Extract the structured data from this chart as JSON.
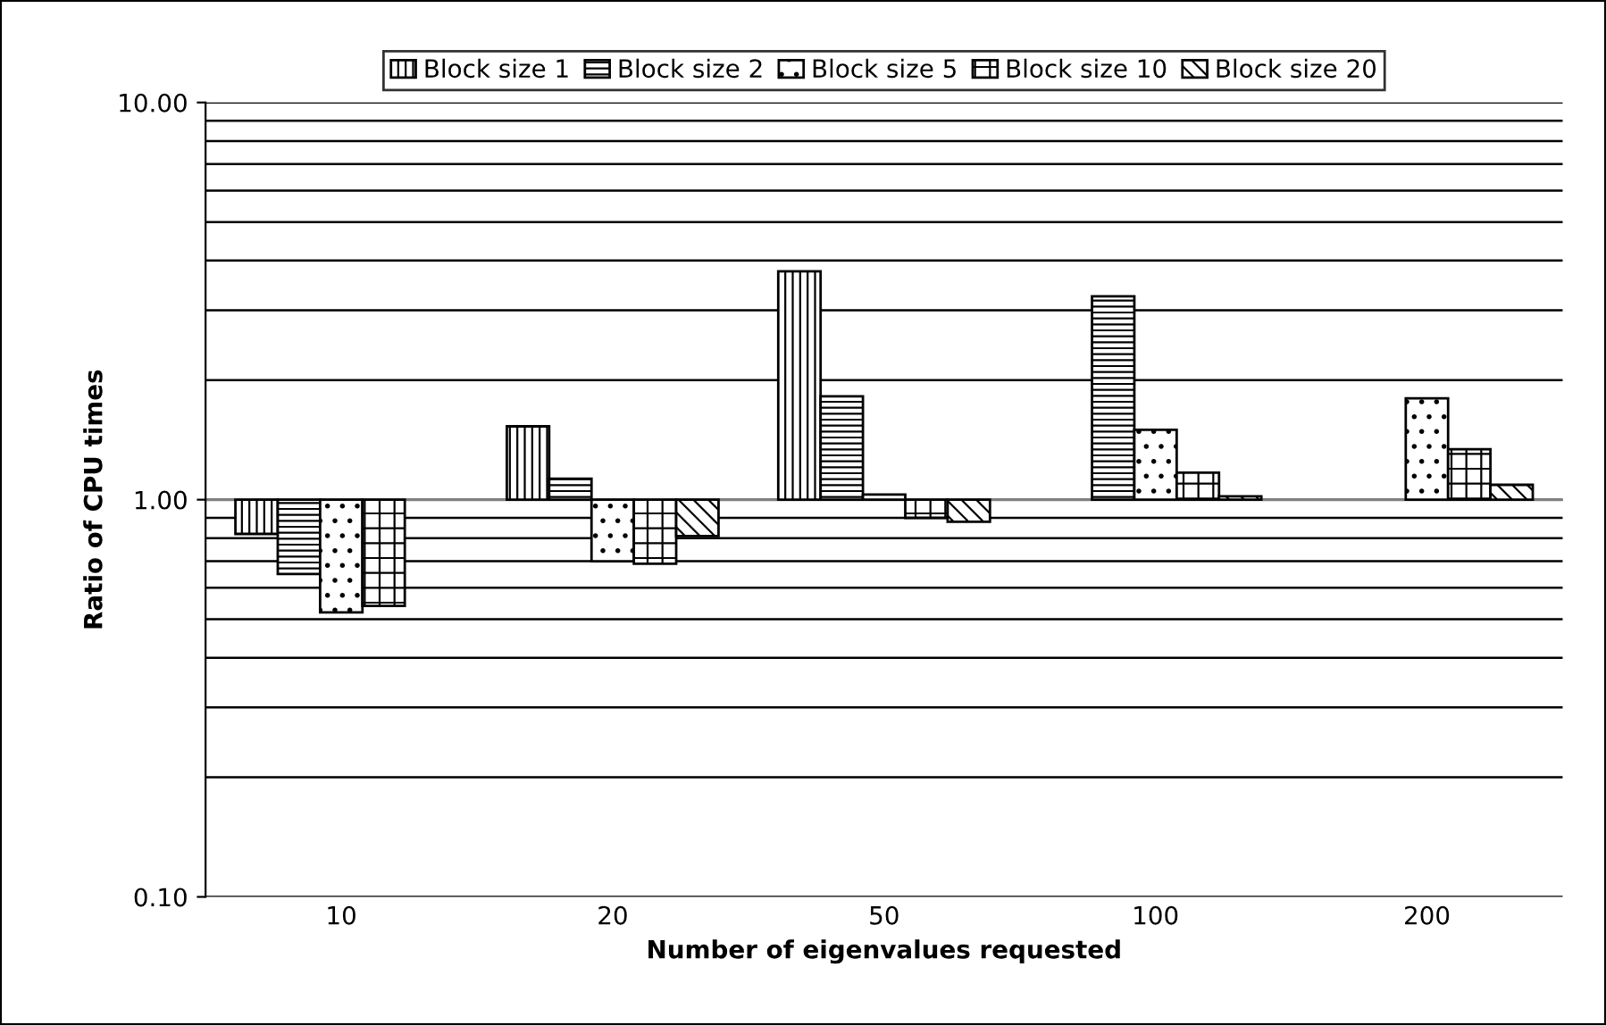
{
  "chart_data": {
    "type": "bar",
    "xlabel": "Number of eigenvalues requested",
    "ylabel": "Ratio of CPU times",
    "categories": [
      "10",
      "20",
      "50",
      "100",
      "200"
    ],
    "series": [
      {
        "name": "Block size 1",
        "color": "#000000",
        "base": [
          1,
          1,
          1,
          null,
          null
        ],
        "values": [
          -0.18,
          0.53,
          2.76,
          null,
          null
        ]
      },
      {
        "name": "Block size 2",
        "color": "#000000",
        "base": [
          1,
          1,
          1,
          1,
          null
        ],
        "values": [
          -0.35,
          0.13,
          0.82,
          2.25,
          null
        ]
      },
      {
        "name": "Block size 5",
        "color": "#000000",
        "base": [
          1,
          1,
          1,
          1,
          1
        ],
        "values": [
          -0.48,
          -0.3,
          0.03,
          0.5,
          0.8
        ]
      },
      {
        "name": "Block size 10",
        "color": "#000000",
        "base": [
          1,
          1,
          1,
          1,
          1
        ],
        "values": [
          -0.46,
          -0.31,
          -0.1,
          0.17,
          0.34
        ]
      },
      {
        "name": "Block size 20",
        "color": "#000000",
        "base": [
          null,
          1,
          1,
          1,
          1
        ],
        "values": [
          null,
          -0.19,
          -0.12,
          0.02,
          0.09
        ]
      }
    ],
    "ref_lines": [
      {
        "axis": "y",
        "value": 1,
        "color": "#808080"
      }
    ],
    "log": true,
    "ylim": [
      0.1,
      10
    ],
    "yticks": [
      {
        "value": 0.1,
        "label": "0.10"
      },
      {
        "value": 0.2,
        "label": null
      },
      {
        "value": 0.3,
        "label": null
      },
      {
        "value": 0.4,
        "label": null
      },
      {
        "value": 0.5,
        "label": null
      },
      {
        "value": 0.6,
        "label": null
      },
      {
        "value": 0.7,
        "label": null
      },
      {
        "value": 0.8,
        "label": null
      },
      {
        "value": 0.9,
        "label": null
      },
      {
        "value": 1,
        "label": "1.00"
      },
      {
        "value": 2,
        "label": null
      },
      {
        "value": 3,
        "label": null
      },
      {
        "value": 4,
        "label": null
      },
      {
        "value": 5,
        "label": null
      },
      {
        "value": 6,
        "label": null
      },
      {
        "value": 7,
        "label": null
      },
      {
        "value": 8,
        "label": null
      },
      {
        "value": 9,
        "label": null
      },
      {
        "value": 10,
        "label": "10.00"
      }
    ],
    "grid": "y",
    "legend": "top"
  }
}
